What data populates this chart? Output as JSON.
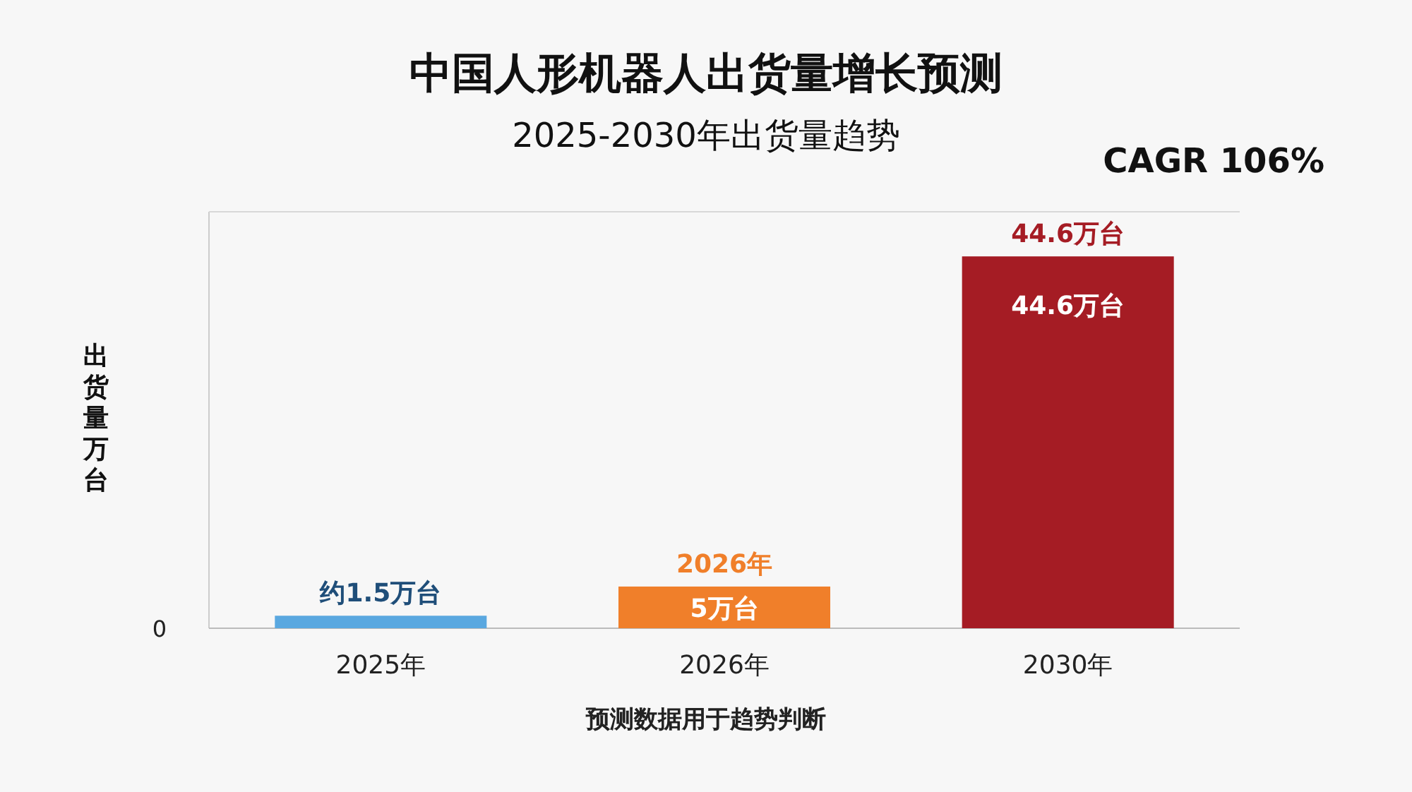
{
  "chart_data": {
    "type": "bar",
    "title": "中国人形机器人出货量增长预测",
    "subtitle": "2025-2030年出货量趋势",
    "ylabel": "出货量万台",
    "xlabel": "预测数据用于趋势判断",
    "categories": [
      "2025年",
      "2026年",
      "2030年"
    ],
    "values": [
      1.5,
      5,
      44.6
    ],
    "colors": [
      "#5aa8e0",
      "#f07f2a",
      "#a51c24"
    ],
    "value_labels": [
      "约1.5万台",
      "5万台",
      "44.6万台"
    ],
    "annotations": [
      "CAGR 106%",
      "0",
      {
        "text": "2026年",
        "x": "2026年",
        "y": 5
      },
      {
        "text": "44.6万台",
        "x": "2030年",
        "y": 44.6
      }
    ]
  }
}
